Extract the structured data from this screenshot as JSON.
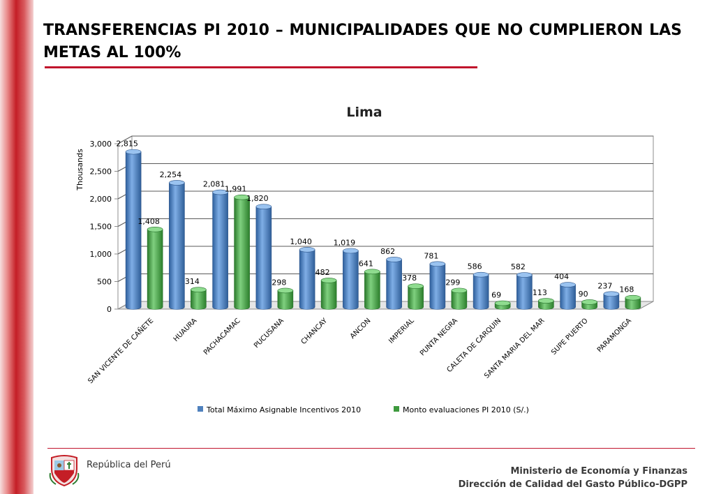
{
  "slide": {
    "title": "TRANSFERENCIAS PI 2010 – MUNICIPALIDADES QUE NO CUMPLIERON LAS METAS AL 100%"
  },
  "footer": {
    "republic": "República del Perú",
    "ministry": "Ministerio de Economía y Finanzas",
    "directorate": "Dirección de Calidad del Gasto Público-DGPP"
  },
  "colors": {
    "accent": "#c0142c",
    "series_blue": "#4f81bd",
    "series_green": "#3e9a3e"
  },
  "chart_data": {
    "type": "bar",
    "title": "Lima",
    "ylabel": "Thousands",
    "xlabel": "",
    "ylim": [
      0,
      3000
    ],
    "yticks": [
      "0",
      "500",
      "1,000",
      "1,500",
      "2,000",
      "2,500",
      "3,000"
    ],
    "grid": true,
    "legend_position": "bottom",
    "categories": [
      "SAN VICENTE DE CAÑETE",
      "HUAURA",
      "PACHACAMAC",
      "PUCUSANA",
      "CHANCAY",
      "ANCON",
      "IMPERIAL",
      "PUNTA NEGRA",
      "CALETA DE CARQUIN",
      "SANTA MARIA DEL MAR",
      "SUPE PUERTO",
      "PARAMONGA"
    ],
    "series": [
      {
        "name": "Total Máximo Asignable Incentivos 2010",
        "color": "#4f81bd",
        "values": [
          2815,
          2254,
          2081,
          1820,
          1040,
          1019,
          862,
          781,
          586,
          582,
          404,
          237
        ],
        "labels": [
          "2,815",
          "2,254",
          "2,081",
          "1,820",
          "1,040",
          "1,019",
          "862",
          "781",
          "586",
          "582",
          "404",
          "237"
        ]
      },
      {
        "name": "Monto evaluaciones PI 2010 (S/.)",
        "color": "#3e9a3e",
        "values": [
          1408,
          314,
          1991,
          298,
          482,
          641,
          378,
          299,
          69,
          113,
          90,
          168
        ],
        "labels": [
          "1,408",
          "314",
          "1,991",
          "298",
          "482",
          "641",
          "378",
          "299",
          "69",
          "113",
          "90",
          "168"
        ]
      }
    ]
  }
}
